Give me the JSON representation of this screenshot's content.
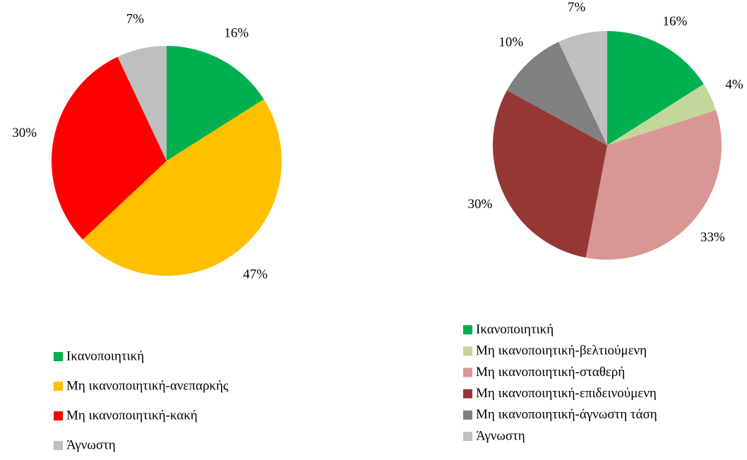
{
  "chart_data": [
    {
      "type": "pie",
      "categories": [
        "Ικανοποιητική",
        "Μη ικανοποιητική-ανεπαρκής",
        "Μη ικανοποιητική-κακή",
        "Άγνωστη"
      ],
      "values": [
        16,
        47,
        30,
        7
      ],
      "value_labels": [
        "16%",
        "47%",
        "30%",
        "7%"
      ],
      "colors": [
        "#00b050",
        "#ffc000",
        "#ff0000",
        "#bfbfbf"
      ]
    },
    {
      "type": "pie",
      "categories": [
        "Ικανοποιητική",
        "Μη ικανοποιητική-βελτιούμενη",
        "Μη ικανοποιητική-σταθερή",
        "Μη ικανοποιητική-επιδεινούμενη",
        "Μη ικανοποιητική-άγνωστη τάση",
        "Άγνωστη"
      ],
      "values": [
        16,
        4,
        33,
        30,
        10,
        7
      ],
      "value_labels": [
        "16%",
        "4%",
        "33%",
        "30%",
        "10%",
        "7%"
      ],
      "colors": [
        "#00b050",
        "#c4d79b",
        "#da9694",
        "#953735",
        "#808080",
        "#bfbfbf"
      ]
    }
  ]
}
